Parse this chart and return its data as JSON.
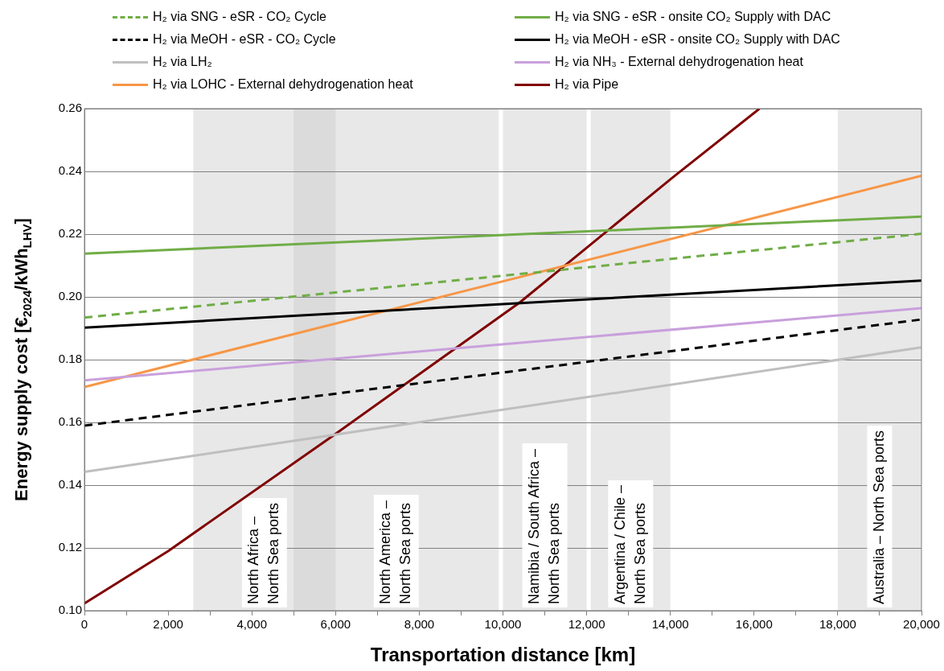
{
  "chart_data": {
    "type": "line",
    "xlabel": "Transportation distance [km]",
    "ylabel": "Energy supply cost [€$_{2024}$/kWh$_{LHV}$]",
    "x": [
      0,
      20000
    ],
    "series": [
      {
        "name": "H₂ via SNG - eSR - CO₂ Cycle",
        "color": "#70ad47",
        "line_style": "dashed",
        "values": [
          0.1934,
          0.2201
        ]
      },
      {
        "name": "H₂ via SNG - eSR - onsite CO₂ Supply with DAC",
        "color": "#70ad47",
        "line_style": "solid",
        "values": [
          0.2138,
          0.2256
        ]
      },
      {
        "name": "H₂ via MeOH - eSR - CO₂ Cycle",
        "color": "#000000",
        "line_style": "dashed",
        "values": [
          0.159,
          0.1928
        ]
      },
      {
        "name": "H₂ via MeOH - eSR - onsite CO₂ Supply with DAC",
        "color": "#000000",
        "line_style": "solid",
        "values": [
          0.1902,
          0.2052
        ]
      },
      {
        "name": "H₂ via LH₂",
        "color": "#bfbfbf",
        "line_style": "solid",
        "values": [
          0.1442,
          0.1839
        ]
      },
      {
        "name": "H₂ via NH₃ - External dehydrogenation heat",
        "color": "#c9a0dc",
        "line_style": "solid",
        "values": [
          0.1734,
          0.1964
        ]
      },
      {
        "name": "H₂ via LOHC - External dehydrogenation heat",
        "color": "#f79646",
        "line_style": "solid",
        "values": [
          0.1713,
          0.2386
        ]
      },
      {
        "name": "H₂ via Pipe",
        "color": "#800000",
        "line_style": "solid",
        "x": [
          0,
          2000,
          5900,
          10400,
          14060,
          16130
        ],
        "values": [
          0.1023,
          0.119,
          0.1554,
          0.1982,
          0.2381,
          0.26
        ]
      }
    ],
    "xlim": [
      0,
      20000
    ],
    "xticks": [
      0,
      {
        "value": 1000,
        "label": null
      },
      {
        "value": 2000,
        "label": "2,000"
      },
      {
        "value": 3000,
        "label": null
      },
      {
        "value": 4000,
        "label": "4,000"
      },
      {
        "value": 5000,
        "label": null
      },
      {
        "value": 6000,
        "label": "6,000"
      },
      {
        "value": 7000,
        "label": null
      },
      {
        "value": 8000,
        "label": "8,000"
      },
      {
        "value": 9000,
        "label": null
      },
      {
        "value": 10000,
        "label": "10,000"
      },
      {
        "value": 11000,
        "label": null
      },
      {
        "value": 12000,
        "label": "12,000"
      },
      {
        "value": 13000,
        "label": null
      },
      {
        "value": 14000,
        "label": "14,000"
      },
      {
        "value": 15000,
        "label": null
      },
      {
        "value": 16000,
        "label": "16,000"
      },
      {
        "value": 17000,
        "label": null
      },
      {
        "value": 18000,
        "label": "18,000"
      },
      {
        "value": 19000,
        "label": null
      },
      {
        "value": 20000,
        "label": "20,000"
      }
    ],
    "ylim": [
      0.1,
      0.26
    ],
    "yticks": [
      {
        "value": 0.1,
        "label": "0.10"
      },
      {
        "value": 0.12,
        "label": "0.12"
      },
      {
        "value": 0.14,
        "label": "0.14"
      },
      {
        "value": 0.16,
        "label": "0.16"
      },
      {
        "value": 0.18,
        "label": "0.18"
      },
      {
        "value": 0.2,
        "label": "0.20"
      },
      {
        "value": 0.22,
        "label": "0.22"
      },
      {
        "value": 0.24,
        "label": "0.24"
      },
      {
        "value": 0.26,
        "label": "0.26"
      }
    ],
    "bands": [
      {
        "axis": "x",
        "from": 2600,
        "to": 6000,
        "label": "North Africa –\nNorth Sea ports",
        "color": "#c8c8c8"
      },
      {
        "axis": "x",
        "from": 5000,
        "to": 9900,
        "label": "North America –\nNorth Sea ports",
        "color": "#c8c8c8"
      },
      {
        "axis": "x",
        "from": 10000,
        "to": 12000,
        "label": "Namibia / South Africa –\nNorth Sea ports",
        "color": "#c8c8c8"
      },
      {
        "axis": "x",
        "from": 12100,
        "to": 14000,
        "label": "Argentina / Chile –\nNorth Sea ports",
        "color": "#c8c8c8"
      },
      {
        "axis": "x",
        "from": 18000,
        "to": 20000,
        "label": "Australia – North Sea ports",
        "color": "#c8c8c8"
      }
    ],
    "grid": "y",
    "legend": "top",
    "marker": "none"
  }
}
